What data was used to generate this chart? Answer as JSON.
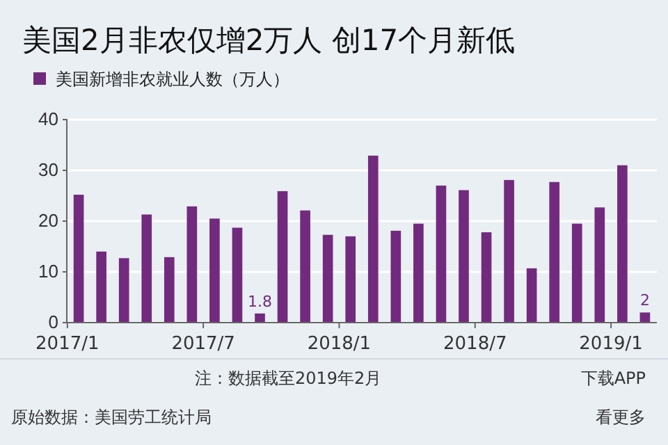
{
  "chart_data": {
    "type": "bar",
    "title": "美国2月非农仅增2万人 创17个月新低",
    "categories": [
      "2017/1",
      null,
      null,
      null,
      null,
      null,
      "2017/7",
      null,
      null,
      null,
      null,
      null,
      "2018/1",
      null,
      null,
      null,
      null,
      null,
      "2018/7",
      null,
      null,
      null,
      null,
      null,
      "2019/1",
      null
    ],
    "series": [
      {
        "name": "美国新增非农就业人数（万人）",
        "color": "#722a7e",
        "values": [
          25.2,
          14.0,
          12.7,
          21.3,
          12.9,
          22.9,
          20.5,
          18.7,
          1.8,
          25.9,
          22.1,
          17.3,
          17.0,
          32.9,
          18.1,
          19.5,
          27.0,
          26.1,
          17.8,
          28.1,
          10.7,
          27.7,
          19.5,
          22.7,
          31.0,
          2
        ],
        "value_labels": [
          null,
          null,
          null,
          null,
          null,
          null,
          null,
          null,
          "1.8",
          null,
          null,
          null,
          null,
          null,
          null,
          null,
          null,
          null,
          null,
          null,
          null,
          null,
          null,
          null,
          null,
          "2"
        ]
      }
    ],
    "ylim": [
      0,
      40
    ],
    "yticks": [
      0,
      10,
      20,
      30,
      40
    ],
    "grid": "y",
    "legend": "top left",
    "annotations": [
      "注：数据截至2019年2月",
      "下载APP",
      "原始数据：美国劳工统计局",
      "看更多"
    ]
  }
}
